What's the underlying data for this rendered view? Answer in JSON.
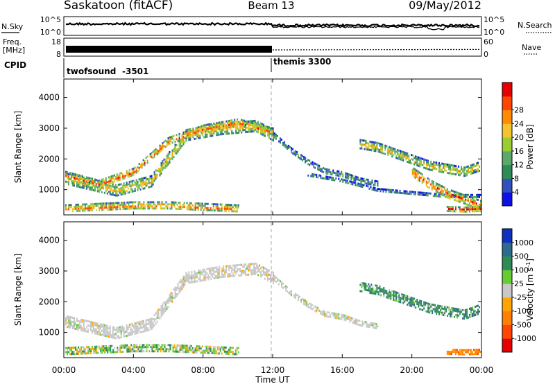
{
  "header": {
    "site": "Saskatoon (fitACF)",
    "beam": "Beam 13",
    "date": "09/May/2012"
  },
  "panels": {
    "nsky": {
      "left_label": "N.Sky",
      "right_label": "N.Search",
      "left_ticks": [
        "10^5",
        "10^0"
      ],
      "right_ticks": [
        "10^5",
        "10^0"
      ]
    },
    "freq": {
      "left_label_line1": "Freq.",
      "left_label_line2": "[MHz]",
      "right_label": "Nave",
      "left_ticks": [
        "18",
        "8"
      ],
      "right_ticks": [
        "60",
        "0"
      ]
    },
    "cpid": {
      "label": "CPID",
      "segments": [
        {
          "name": "twofsound",
          "id": "-3501",
          "start_hour": 0,
          "end_hour": 12
        },
        {
          "name": "themis",
          "id": "3300",
          "start_hour": 12,
          "end_hour": 24
        }
      ]
    }
  },
  "x_axis": {
    "label": "Time UT",
    "ticks": [
      "00:00",
      "04:00",
      "08:00",
      "12:00",
      "16:00",
      "20:00",
      "00:00"
    ]
  },
  "chart_data": [
    {
      "type": "heatmap",
      "name": "power",
      "ylabel": "Slant Range [km]",
      "ylim": [
        180,
        4600
      ],
      "xlim": [
        0,
        24
      ],
      "yticks": [
        1000,
        2000,
        3000,
        4000
      ],
      "colorbar": {
        "label": "Power [dB]",
        "ticks": [
          "4",
          "8",
          "12",
          "16",
          "20",
          "24",
          "28"
        ],
        "colors": [
          "#1010e6",
          "#3050c0",
          "#2e8b57",
          "#5aa86a",
          "#9acd32",
          "#f4c430",
          "#ff8c00",
          "#ff4500",
          "#e60000"
        ]
      },
      "echo_bands": [
        {
          "hours": [
            0,
            3,
            5,
            7,
            9,
            11,
            12
          ],
          "range_km": [
            1400,
            1000,
            1300,
            2800,
            3000,
            3100,
            2800
          ],
          "width_km": 350,
          "level": 0.65
        },
        {
          "hours": [
            0,
            2,
            4,
            6,
            8,
            10,
            12
          ],
          "range_km": [
            1500,
            1200,
            1600,
            2600,
            3000,
            3200,
            2900
          ],
          "width_km": 250,
          "level": 0.8
        },
        {
          "hours": [
            12,
            13,
            14,
            15,
            16,
            17,
            18
          ],
          "range_km": [
            2800,
            2300,
            1900,
            1600,
            1500,
            1300,
            1200
          ],
          "width_km": 200,
          "level": 0.35
        },
        {
          "hours": [
            14,
            16,
            18,
            20,
            22,
            24
          ],
          "range_km": [
            1500,
            1300,
            1000,
            900,
            800,
            800
          ],
          "width_km": 120,
          "level": 0.3
        },
        {
          "hours": [
            17,
            18,
            19,
            20,
            21,
            22,
            23,
            24
          ],
          "range_km": [
            2500,
            2400,
            2200,
            2000,
            1800,
            1700,
            1600,
            1800
          ],
          "width_km": 300,
          "level": 0.6
        },
        {
          "hours": [
            20,
            21,
            22,
            23,
            24
          ],
          "range_km": [
            1600,
            1200,
            900,
            700,
            500
          ],
          "width_km": 300,
          "level": 0.85
        },
        {
          "hours": [
            0,
            2,
            4,
            6,
            8,
            10
          ],
          "range_km": [
            400,
            450,
            500,
            500,
            450,
            400
          ],
          "width_km": 250,
          "level": 0.75
        },
        {
          "hours": [
            22,
            23,
            24
          ],
          "range_km": [
            400,
            380,
            400
          ],
          "width_km": 150,
          "level": 0.9
        }
      ]
    },
    {
      "type": "heatmap",
      "name": "velocity",
      "ylabel": "Slant Range [km]",
      "ylim": [
        180,
        4600
      ],
      "xlim": [
        0,
        24
      ],
      "yticks": [
        1000,
        2000,
        3000,
        4000
      ],
      "colorbar": {
        "label": "Velocity [m s^-1]",
        "ticks": [
          "1000",
          "500",
          "100",
          "25",
          "-25",
          "-100",
          "-500",
          "-1000"
        ],
        "colors": [
          "#1030c0",
          "#2e6b8b",
          "#2e8b57",
          "#66cc33",
          "#c8c8c8",
          "#ffa500",
          "#ff7f00",
          "#ff4500",
          "#e60000"
        ]
      },
      "echo_bands": [
        {
          "hours": [
            0,
            3,
            5,
            7,
            9,
            11,
            12
          ],
          "range_km": [
            1400,
            1000,
            1300,
            2800,
            3000,
            3100,
            2800
          ],
          "width_km": 350,
          "class": "gray"
        },
        {
          "hours": [
            12,
            13,
            14,
            15,
            16,
            17,
            18
          ],
          "range_km": [
            2800,
            2300,
            1900,
            1600,
            1500,
            1300,
            1200
          ],
          "width_km": 200,
          "class": "gray"
        },
        {
          "hours": [
            17,
            18,
            19,
            20,
            21,
            22,
            23,
            24
          ],
          "range_km": [
            2500,
            2400,
            2200,
            2000,
            1800,
            1700,
            1600,
            1800
          ],
          "width_km": 300,
          "class": "green"
        },
        {
          "hours": [
            0,
            2,
            4,
            6,
            8,
            10
          ],
          "range_km": [
            400,
            450,
            500,
            500,
            450,
            400
          ],
          "width_km": 250,
          "class": "greenmix"
        },
        {
          "hours": [
            22,
            23,
            24
          ],
          "range_km": [
            400,
            380,
            400
          ],
          "width_km": 150,
          "class": "orange"
        }
      ]
    }
  ]
}
